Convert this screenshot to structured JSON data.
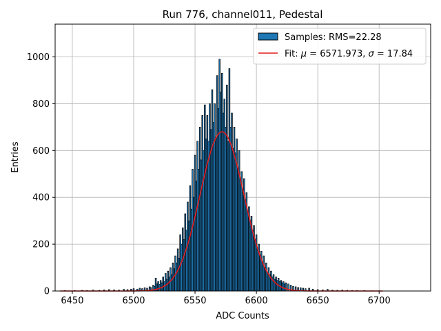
{
  "chart_data": {
    "type": "bar",
    "title": "Run 776, channel011, Pedestal",
    "xlabel": "ADC Counts",
    "ylabel": "Entries",
    "xlim": [
      6436,
      6742
    ],
    "ylim": [
      0,
      1140
    ],
    "x_ticks": [
      6450,
      6500,
      6550,
      6600,
      6650,
      6700
    ],
    "y_ticks": [
      0,
      200,
      400,
      600,
      800,
      1000
    ],
    "grid": true,
    "legend": {
      "placement": "top-right",
      "entries": [
        {
          "kind": "bar",
          "label": "Samples: RMS=22.28"
        },
        {
          "kind": "line",
          "label_prefix": "Fit: ",
          "label_mu": "μ",
          "label_mid": " = 6571.973, ",
          "label_sigma": "σ",
          "label_suffix": " = 17.84"
        }
      ]
    },
    "colors": {
      "bar_fill": "#1f77b4",
      "bar_edge": "#000000",
      "fit_line": "#e31a1c",
      "grid": "#b0b0b0"
    },
    "histogram": {
      "bin_width": 1,
      "bins": [
        [
          6444,
          2
        ],
        [
          6452,
          2
        ],
        [
          6458,
          3
        ],
        [
          6462,
          2
        ],
        [
          6467,
          4
        ],
        [
          6472,
          3
        ],
        [
          6476,
          5
        ],
        [
          6480,
          6
        ],
        [
          6484,
          5
        ],
        [
          6488,
          4
        ],
        [
          6492,
          7
        ],
        [
          6495,
          6
        ],
        [
          6498,
          8
        ],
        [
          6500,
          10
        ],
        [
          6503,
          8
        ],
        [
          6505,
          12
        ],
        [
          6507,
          10
        ],
        [
          6509,
          14
        ],
        [
          6511,
          12
        ],
        [
          6513,
          18
        ],
        [
          6514,
          15
        ],
        [
          6516,
          25
        ],
        [
          6517,
          20
        ],
        [
          6518,
          55
        ],
        [
          6519,
          30
        ],
        [
          6520,
          40
        ],
        [
          6521,
          28
        ],
        [
          6522,
          45
        ],
        [
          6523,
          35
        ],
        [
          6524,
          60
        ],
        [
          6525,
          40
        ],
        [
          6526,
          75
        ],
        [
          6527,
          50
        ],
        [
          6528,
          85
        ],
        [
          6529,
          60
        ],
        [
          6530,
          100
        ],
        [
          6531,
          70
        ],
        [
          6532,
          120
        ],
        [
          6533,
          95
        ],
        [
          6534,
          150
        ],
        [
          6535,
          120
        ],
        [
          6536,
          180
        ],
        [
          6537,
          140
        ],
        [
          6538,
          240
        ],
        [
          6539,
          200
        ],
        [
          6540,
          270
        ],
        [
          6541,
          220
        ],
        [
          6542,
          330
        ],
        [
          6543,
          260
        ],
        [
          6544,
          380
        ],
        [
          6545,
          300
        ],
        [
          6546,
          450
        ],
        [
          6547,
          350
        ],
        [
          6548,
          520
        ],
        [
          6549,
          400
        ],
        [
          6550,
          580
        ],
        [
          6551,
          470
        ],
        [
          6552,
          640
        ],
        [
          6553,
          520
        ],
        [
          6554,
          700
        ],
        [
          6555,
          560
        ],
        [
          6556,
          750
        ],
        [
          6557,
          600
        ],
        [
          6558,
          795
        ],
        [
          6559,
          650
        ],
        [
          6560,
          750
        ],
        [
          6561,
          640
        ],
        [
          6562,
          800
        ],
        [
          6563,
          690
        ],
        [
          6564,
          860
        ],
        [
          6565,
          720
        ],
        [
          6566,
          800
        ],
        [
          6567,
          650
        ],
        [
          6568,
          920
        ],
        [
          6569,
          780
        ],
        [
          6570,
          990
        ],
        [
          6571,
          850
        ],
        [
          6572,
          930
        ],
        [
          6573,
          760
        ],
        [
          6574,
          820
        ],
        [
          6575,
          700
        ],
        [
          6576,
          880
        ],
        [
          6577,
          640
        ],
        [
          6578,
          950
        ],
        [
          6579,
          700
        ],
        [
          6580,
          760
        ],
        [
          6581,
          610
        ],
        [
          6582,
          700
        ],
        [
          6583,
          590
        ],
        [
          6584,
          650
        ],
        [
          6585,
          520
        ],
        [
          6586,
          600
        ],
        [
          6587,
          480
        ],
        [
          6588,
          510
        ],
        [
          6589,
          420
        ],
        [
          6590,
          480
        ],
        [
          6591,
          390
        ],
        [
          6592,
          420
        ],
        [
          6593,
          340
        ],
        [
          6594,
          360
        ],
        [
          6595,
          300
        ],
        [
          6596,
          320
        ],
        [
          6597,
          260
        ],
        [
          6598,
          280
        ],
        [
          6599,
          220
        ],
        [
          6600,
          240
        ],
        [
          6601,
          180
        ],
        [
          6602,
          200
        ],
        [
          6603,
          150
        ],
        [
          6604,
          170
        ],
        [
          6605,
          120
        ],
        [
          6606,
          150
        ],
        [
          6607,
          100
        ],
        [
          6608,
          120
        ],
        [
          6609,
          80
        ],
        [
          6610,
          100
        ],
        [
          6611,
          70
        ],
        [
          6612,
          85
        ],
        [
          6613,
          60
        ],
        [
          6614,
          70
        ],
        [
          6615,
          50
        ],
        [
          6616,
          60
        ],
        [
          6617,
          45
        ],
        [
          6618,
          55
        ],
        [
          6619,
          40
        ],
        [
          6620,
          45
        ],
        [
          6621,
          35
        ],
        [
          6622,
          40
        ],
        [
          6623,
          30
        ],
        [
          6624,
          35
        ],
        [
          6626,
          30
        ],
        [
          6628,
          25
        ],
        [
          6630,
          20
        ],
        [
          6632,
          18
        ],
        [
          6634,
          15
        ],
        [
          6636,
          14
        ],
        [
          6638,
          12
        ],
        [
          6640,
          10
        ],
        [
          6643,
          12
        ],
        [
          6646,
          8
        ],
        [
          6650,
          6
        ],
        [
          6654,
          5
        ],
        [
          6658,
          7
        ],
        [
          6662,
          4
        ],
        [
          6666,
          3
        ],
        [
          6670,
          4
        ],
        [
          6674,
          3
        ],
        [
          6678,
          2
        ],
        [
          6682,
          2
        ],
        [
          6688,
          2
        ],
        [
          6694,
          1
        ],
        [
          6700,
          1
        ]
      ]
    },
    "fit": {
      "mu": 6571.973,
      "sigma": 17.84,
      "amplitude": 680,
      "x_range": [
        6440,
        6703
      ]
    }
  }
}
